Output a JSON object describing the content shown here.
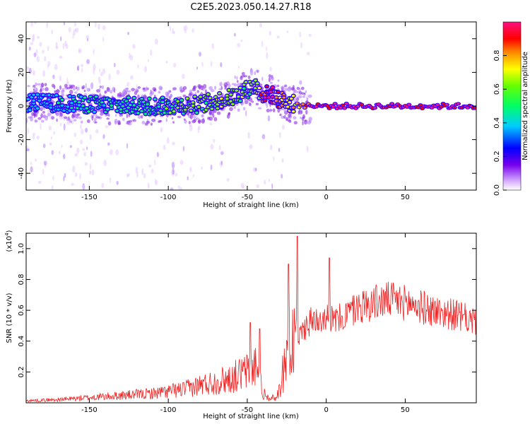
{
  "title": "C2E5.2023.050.14.27.R18",
  "chart_data": [
    {
      "type": "heatmap",
      "name": "spectrogram",
      "xlabel": "Height of straight line (km)",
      "ylabel": "Frequency (Hz)",
      "xlim": [
        -190,
        95
      ],
      "ylim": [
        -50,
        50
      ],
      "xticks": [
        -150,
        -100,
        -50,
        0,
        50
      ],
      "yticks": [
        -40,
        -20,
        0,
        20,
        40
      ],
      "colorbar": {
        "label": "Normalized spectral amplitude",
        "range": [
          0,
          1
        ],
        "ticks": [
          "0.0",
          "0.2",
          "0.4",
          "0.6",
          "0.8"
        ],
        "colormap": [
          "#ffffff",
          "#cc99ff",
          "#7700ee",
          "#0000ff",
          "#00ffff",
          "#00ff00",
          "#ffff00",
          "#ff8800",
          "#ff0000",
          "#ff1080"
        ]
      },
      "trend": {
        "x": [
          -185,
          -150,
          -120,
          -100,
          -80,
          -60,
          -50,
          -45,
          -40,
          -35,
          -30,
          -25,
          -20,
          -15,
          -10,
          0,
          10,
          30,
          60,
          92
        ],
        "center_hz": [
          2,
          1,
          0,
          0,
          1,
          5,
          10,
          12,
          7,
          7,
          4,
          2,
          1,
          0.5,
          0,
          0,
          0,
          0,
          0,
          0
        ],
        "amplitude": [
          0.35,
          0.4,
          0.45,
          0.5,
          0.55,
          0.6,
          0.55,
          0.55,
          0.85,
          0.9,
          0.75,
          0.7,
          0.7,
          0.75,
          0.95,
          0.98,
          0.98,
          0.98,
          0.98,
          0.98
        ]
      }
    },
    {
      "type": "line",
      "name": "snr",
      "xlabel": "Height of straight line (km)",
      "ylabel": "SNR (10 * v/v)",
      "y_multiplier": "(x10",
      "y_exponent": "4",
      "y_multiplier_close": ")",
      "xlim": [
        -190,
        95
      ],
      "ylim": [
        0,
        1.1
      ],
      "xticks": [
        -150,
        -100,
        -50,
        0,
        50
      ],
      "yticks": [
        0.2,
        0.4,
        0.6,
        0.8,
        1.0
      ],
      "color": "#ee2222",
      "envelope_x": [
        -190,
        -170,
        -150,
        -130,
        -110,
        -100,
        -90,
        -80,
        -70,
        -60,
        -50,
        -45,
        -40,
        -37,
        -35,
        -32,
        -30,
        -27,
        -25,
        -22,
        -20,
        -18,
        -15,
        -10,
        -5,
        0,
        5,
        10,
        20,
        30,
        40,
        50,
        60,
        70,
        80,
        95
      ],
      "envelope_y": [
        0.02,
        0.03,
        0.05,
        0.07,
        0.09,
        0.11,
        0.13,
        0.17,
        0.2,
        0.24,
        0.3,
        0.35,
        0.1,
        0.05,
        0.04,
        0.05,
        0.1,
        0.3,
        0.55,
        0.5,
        0.6,
        0.4,
        0.5,
        0.55,
        0.58,
        0.6,
        0.55,
        0.58,
        0.65,
        0.68,
        0.7,
        0.68,
        0.65,
        0.62,
        0.6,
        0.55
      ],
      "spikes": [
        {
          "x": -18.5,
          "y": 1.08
        },
        {
          "x": -24,
          "y": 0.9
        },
        {
          "x": 2,
          "y": 0.94
        },
        {
          "x": -48,
          "y": 0.52
        },
        {
          "x": -42,
          "y": 0.48
        }
      ]
    }
  ]
}
